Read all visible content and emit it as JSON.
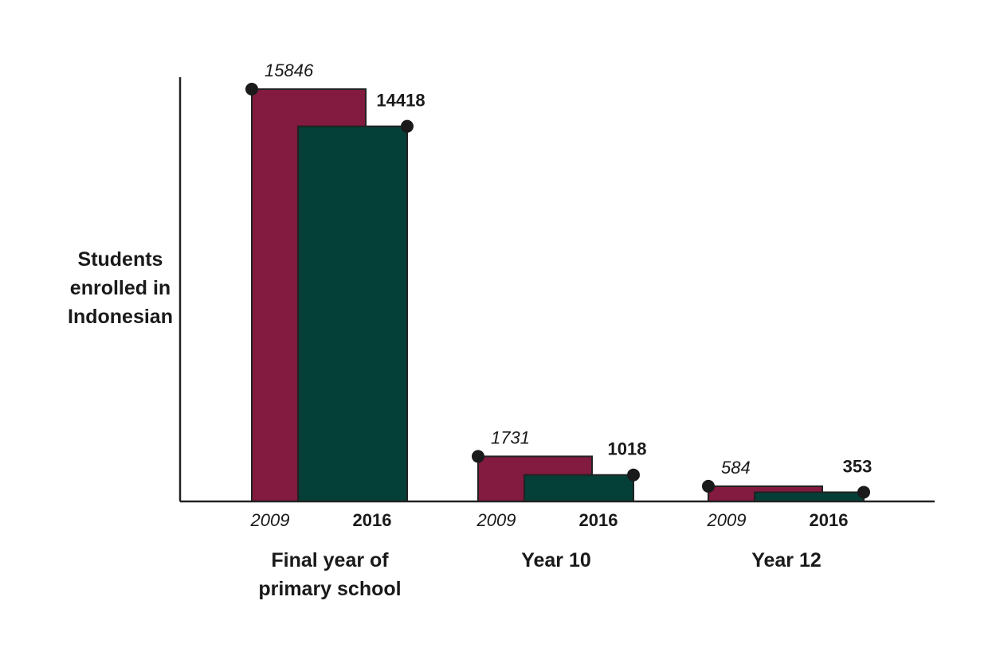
{
  "chart_data": {
    "type": "bar",
    "title": "",
    "ylabel_lines": [
      "Students",
      "enrolled in",
      "Indonesian"
    ],
    "xlabel": "",
    "categories": [
      {
        "lines": [
          "Final year of",
          "primary school"
        ]
      },
      {
        "lines": [
          "Year 10"
        ]
      },
      {
        "lines": [
          "Year 12"
        ]
      }
    ],
    "series": [
      {
        "name": "2009",
        "color": "#831a3f",
        "values": [
          15846,
          1731,
          584
        ],
        "labels": [
          "15846",
          "1731",
          "584"
        ]
      },
      {
        "name": "2016",
        "color": "#043f38",
        "values": [
          14418,
          1018,
          353
        ],
        "labels": [
          "14418",
          "1018",
          "353"
        ]
      }
    ],
    "ylim": [
      0,
      15846
    ],
    "grid": false,
    "legend": "none"
  }
}
